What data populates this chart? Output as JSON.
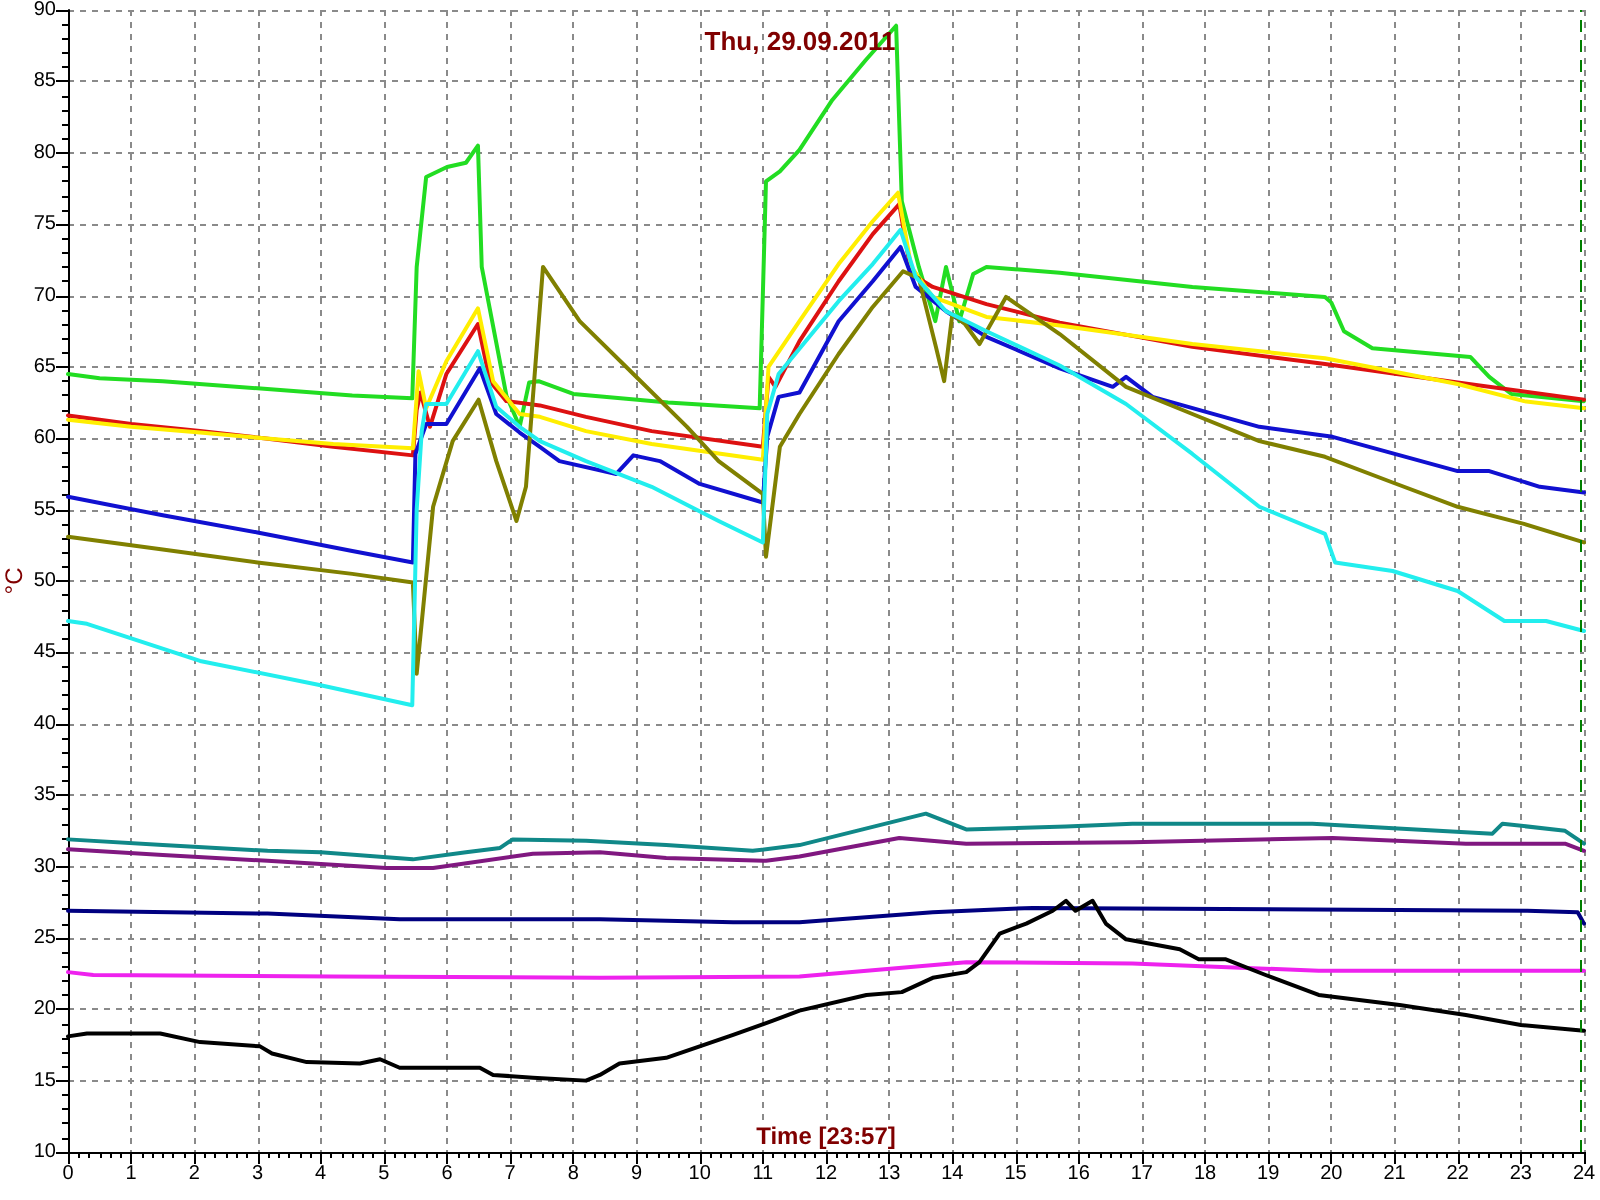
{
  "chart_data": {
    "type": "line",
    "title": "Thu, 29.09.2011",
    "xlabel": "Time [23:57]",
    "ylabel": "°C",
    "xlim": [
      0,
      24
    ],
    "xticks": [
      0,
      1,
      2,
      3,
      4,
      5,
      6,
      7,
      8,
      9,
      10,
      11,
      12,
      13,
      14,
      15,
      16,
      17,
      18,
      19,
      20,
      21,
      22,
      23,
      24
    ],
    "ylim": [
      10,
      90
    ],
    "yticks": [
      10,
      15,
      20,
      25,
      30,
      35,
      40,
      45,
      50,
      55,
      60,
      65,
      70,
      75,
      80,
      85,
      90
    ],
    "grid": true,
    "marker": "none",
    "line_style": "solid",
    "ref_lines": [
      {
        "axis": "x",
        "value": 23.95,
        "color": "#008000",
        "line_style": "dashed"
      }
    ],
    "series": [
      {
        "color": "#22dd22",
        "x": [
          0,
          0.5,
          1.5,
          3,
          4.5,
          5.45,
          5.52,
          5.67,
          6,
          6.3,
          6.49,
          6.55,
          6.94,
          7.15,
          7.3,
          7.45,
          8,
          9.5,
          10.95,
          11.05,
          11.27,
          11.58,
          12.1,
          12.63,
          13.11,
          13.2,
          13.47,
          13.73,
          13.9,
          14.11,
          14.33,
          14.54,
          15.7,
          17.8,
          19.9,
          20,
          20.2,
          20.65,
          22.2,
          22.5,
          22.85,
          24
        ],
        "values": [
          64.5,
          64.2,
          64.0,
          63.5,
          63.0,
          62.8,
          72.0,
          78.3,
          79.0,
          79.3,
          80.5,
          72.0,
          63.0,
          60.8,
          63.9,
          64.0,
          63.1,
          62.5,
          62.1,
          78.0,
          78.7,
          80.2,
          83.7,
          86.5,
          88.9,
          76.6,
          72.0,
          68.2,
          72.0,
          68.2,
          71.5,
          72.0,
          71.6,
          70.6,
          69.9,
          69.5,
          67.5,
          66.3,
          65.7,
          64.3,
          63.1,
          62.6
        ]
      },
      {
        "color": "#dd1111",
        "x": [
          0,
          1,
          2.09,
          3.1,
          4.2,
          5.46,
          5.52,
          5.58,
          5.73,
          5.99,
          6.49,
          6.68,
          6.94,
          7.47,
          8.2,
          9.24,
          11,
          11.09,
          11.2,
          11.58,
          12.2,
          12.74,
          13.16,
          13.35,
          13.69,
          14.54,
          15.7,
          17.8,
          19.9,
          22,
          24
        ],
        "values": [
          61.6,
          61.0,
          60.5,
          60.0,
          59.4,
          58.8,
          62.0,
          63.2,
          60.8,
          64.5,
          68.0,
          64.0,
          62.6,
          62.3,
          61.5,
          60.5,
          59.4,
          64.3,
          63.6,
          66.8,
          71.0,
          74.3,
          76.4,
          71.5,
          70.6,
          69.4,
          68.1,
          66.4,
          65.2,
          63.9,
          62.7
        ]
      },
      {
        "color": "#ffee00",
        "x": [
          0,
          1,
          2.09,
          3.1,
          4.2,
          5.46,
          5.55,
          5.67,
          5.99,
          6.49,
          6.73,
          7.15,
          7.47,
          8.2,
          9.24,
          11,
          11.09,
          11.58,
          12.2,
          12.74,
          13.14,
          13.35,
          13.69,
          14.54,
          15.7,
          17.8,
          19.9,
          22,
          23.05,
          24
        ],
        "values": [
          61.3,
          60.8,
          60.4,
          60.0,
          59.6,
          59.3,
          64.7,
          62.1,
          65.4,
          69.1,
          64.0,
          61.7,
          61.5,
          60.5,
          59.6,
          58.5,
          65.0,
          68.2,
          72.2,
          75.2,
          77.2,
          72.0,
          69.9,
          68.5,
          67.9,
          66.6,
          65.6,
          63.8,
          62.6,
          62.1
        ]
      },
      {
        "color": "#1010d0",
        "x": [
          0,
          1.5,
          3,
          4.5,
          5.46,
          5.5,
          5.67,
          5.99,
          6.52,
          6.78,
          7.15,
          7.47,
          7.78,
          8.68,
          8.95,
          9.37,
          10,
          11,
          11.07,
          11.25,
          11.58,
          12.2,
          12.74,
          13.18,
          13.42,
          13.9,
          14.54,
          15.7,
          16.54,
          16.75,
          17.17,
          18.86,
          20.02,
          22,
          22.5,
          23.3,
          24
        ],
        "values": [
          55.9,
          54.6,
          53.4,
          52.1,
          51.3,
          58.9,
          61.0,
          61.0,
          64.9,
          61.7,
          60.4,
          59.4,
          58.4,
          57.5,
          58.8,
          58.4,
          56.8,
          55.5,
          60.1,
          62.9,
          63.2,
          68.2,
          71.0,
          73.4,
          70.6,
          68.9,
          67.1,
          64.9,
          63.6,
          64.3,
          62.9,
          60.8,
          60.1,
          57.7,
          57.7,
          56.6,
          56.2
        ]
      },
      {
        "color": "#808000",
        "x": [
          0,
          1.5,
          3,
          4.5,
          5.46,
          5.52,
          5.78,
          6.09,
          6.5,
          6.78,
          7.1,
          7.25,
          7.52,
          8.1,
          8.95,
          9.8,
          10.3,
          11,
          11.05,
          11.27,
          11.58,
          12.2,
          12.74,
          13.22,
          13.47,
          13.74,
          13.87,
          14,
          14.2,
          14.43,
          14.85,
          15.7,
          16.75,
          17.8,
          18.86,
          19.9,
          20.97,
          22,
          23.05,
          24
        ],
        "values": [
          53.1,
          52.2,
          51.3,
          50.5,
          49.9,
          43.5,
          55.2,
          59.8,
          62.7,
          58.4,
          54.2,
          56.6,
          72.0,
          68.2,
          64.5,
          60.8,
          58.4,
          56.1,
          51.7,
          59.4,
          61.7,
          65.9,
          69.2,
          71.7,
          71.2,
          66.4,
          64.0,
          68.7,
          68.0,
          66.6,
          69.9,
          67.3,
          63.6,
          61.7,
          59.8,
          58.7,
          56.9,
          55.2,
          54.0,
          52.7
        ]
      },
      {
        "color": "#22eeee",
        "x": [
          0,
          0.3,
          2.09,
          4,
          5.45,
          5.52,
          5.6,
          5.67,
          5.99,
          6.49,
          6.78,
          7.15,
          7.47,
          8.2,
          9.24,
          10.3,
          11,
          11.07,
          11.25,
          12.2,
          12.74,
          13.18,
          13.42,
          13.9,
          14.54,
          15.7,
          16.75,
          17.8,
          18.86,
          19.9,
          20.06,
          20.97,
          22,
          22.74,
          23.4,
          24
        ],
        "values": [
          47.2,
          47.0,
          44.4,
          42.7,
          41.3,
          55.0,
          60.5,
          62.4,
          62.4,
          66.1,
          62.2,
          60.8,
          59.8,
          58.4,
          56.6,
          54.2,
          52.7,
          61.7,
          64.5,
          69.6,
          72.2,
          74.6,
          71.3,
          68.9,
          67.5,
          65.1,
          62.4,
          58.9,
          55.2,
          53.3,
          51.3,
          50.7,
          49.3,
          47.2,
          47.2,
          46.5
        ]
      },
      {
        "color": "#108888",
        "x": [
          0,
          1.5,
          3.16,
          4,
          5.46,
          6.3,
          6.84,
          7.04,
          8.2,
          9.47,
          10.84,
          11.58,
          13.58,
          14.22,
          15.8,
          16.85,
          19.7,
          22.55,
          22.71,
          23.7,
          24
        ],
        "values": [
          31.9,
          31.5,
          31.1,
          31.0,
          30.5,
          31.0,
          31.3,
          31.9,
          31.8,
          31.5,
          31.1,
          31.5,
          33.7,
          32.6,
          32.8,
          33.0,
          33.0,
          32.3,
          33.0,
          32.5,
          31.6
        ]
      },
      {
        "color": "#801880",
        "x": [
          0,
          1.5,
          3.16,
          5.04,
          5.78,
          7.36,
          8.42,
          9.47,
          11.05,
          11.58,
          13.16,
          14.22,
          16.85,
          20.02,
          22.13,
          23.7,
          24
        ],
        "values": [
          31.2,
          30.8,
          30.4,
          29.9,
          29.9,
          30.9,
          31.0,
          30.6,
          30.4,
          30.7,
          32.0,
          31.6,
          31.7,
          32.0,
          31.6,
          31.6,
          31.1
        ]
      },
      {
        "color": "#000080",
        "x": [
          0,
          3.16,
          5.25,
          8.42,
          10.53,
          11.58,
          13.69,
          15.27,
          23.1,
          23.9,
          24
        ],
        "values": [
          26.9,
          26.7,
          26.3,
          26.3,
          26.1,
          26.1,
          26.8,
          27.1,
          26.9,
          26.8,
          26.0
        ]
      },
      {
        "color": "#ee22ee",
        "x": [
          0,
          0.4,
          4.2,
          8.42,
          11.58,
          14.22,
          16.85,
          19.8,
          24
        ],
        "values": [
          22.6,
          22.4,
          22.3,
          22.2,
          22.3,
          23.3,
          23.2,
          22.7,
          22.7
        ]
      },
      {
        "color": "#000000",
        "x": [
          0,
          0.3,
          1.46,
          2.09,
          3.04,
          3.23,
          3.78,
          4.62,
          4.94,
          5.25,
          6.52,
          6.73,
          7.36,
          8.2,
          8.42,
          8.73,
          9.47,
          10.53,
          11.16,
          11.58,
          12.64,
          13.2,
          13.69,
          14.22,
          14.43,
          14.75,
          15.17,
          15.59,
          15.8,
          15.95,
          16.22,
          16.43,
          16.75,
          17.6,
          17.9,
          18.33,
          18.96,
          19.8,
          21.08,
          22.13,
          23,
          24
        ],
        "values": [
          18.1,
          18.3,
          18.3,
          17.7,
          17.4,
          16.9,
          16.3,
          16.2,
          16.5,
          15.9,
          15.9,
          15.4,
          15.2,
          15.0,
          15.4,
          16.2,
          16.6,
          18.2,
          19.2,
          19.9,
          21.0,
          21.2,
          22.2,
          22.6,
          23.3,
          25.3,
          26.0,
          26.9,
          27.6,
          26.9,
          27.6,
          26.0,
          24.9,
          24.2,
          23.5,
          23.5,
          22.4,
          21.0,
          20.3,
          19.6,
          18.9,
          18.5
        ]
      }
    ]
  }
}
